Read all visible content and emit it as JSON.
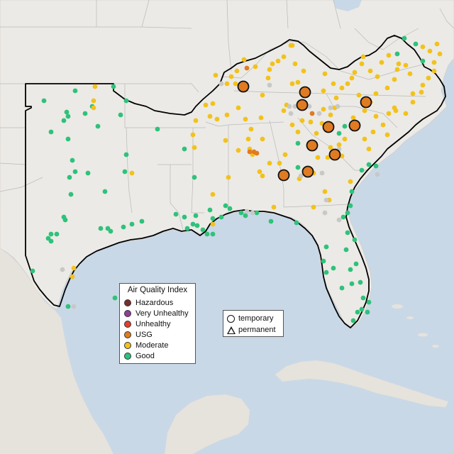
{
  "legend": {
    "title": "Air Quality Index",
    "items": [
      {
        "label": "Hazardous",
        "color": "#7e2b2b",
        "icon": "hazardous-dot"
      },
      {
        "label": "Very Unhealthy",
        "color": "#8f3f97",
        "icon": "very-unhealthy-dot"
      },
      {
        "label": "Unhealthy",
        "color": "#e0402a",
        "icon": "unhealthy-dot"
      },
      {
        "label": "USG",
        "color": "#e07b22",
        "icon": "usg-dot"
      },
      {
        "label": "Moderate",
        "color": "#f2c21b",
        "icon": "moderate-dot"
      },
      {
        "label": "Good",
        "color": "#2ec27a",
        "icon": "good-dot"
      }
    ]
  },
  "shape_legend": {
    "temporary": "temporary",
    "permanent": "permanent"
  },
  "colors": {
    "ocean": "#c9d8e6",
    "land": "#eceae6",
    "boundary": "#000000",
    "state_line": "#b9b9b9",
    "inactive_monitor": "#c8c8c8"
  }
}
